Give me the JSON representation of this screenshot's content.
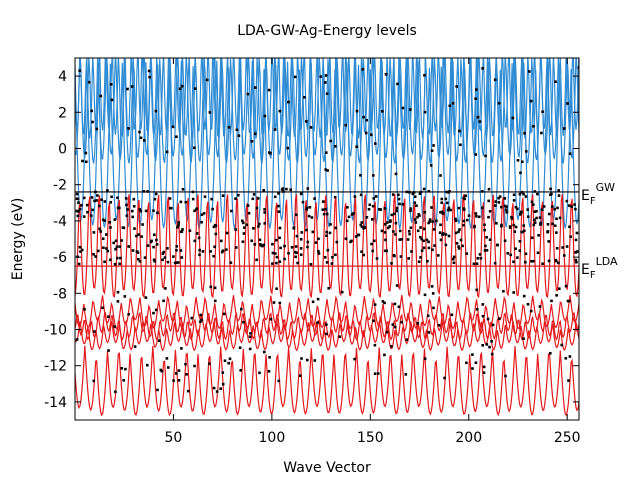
{
  "chart_data": {
    "type": "line",
    "title": "LDA-GW-Ag-Energy levels",
    "xlabel": "Wave Vector",
    "ylabel": "Energy (eV)",
    "xlim": [
      0,
      256
    ],
    "ylim": [
      -15,
      5
    ],
    "xticks": [
      50,
      100,
      150,
      200,
      250
    ],
    "yticks": [
      4,
      2,
      0,
      -2,
      -4,
      -6,
      -8,
      -10,
      -12,
      -14
    ],
    "grid": false,
    "legend": "none",
    "reference_lines": [
      {
        "id": "ef-gw",
        "y": -2.4,
        "label_main": "E",
        "label_sub": "F",
        "label_sup": "GW",
        "color": "#000000"
      },
      {
        "id": "ef-lda",
        "y": -6.5,
        "label_main": "E",
        "label_sub": "F",
        "label_sup": "LDA",
        "color": "#e41a1c"
      }
    ],
    "series": [
      {
        "style": "line",
        "color": "#2e8bd4",
        "bands": [
          {
            "base": 0.2,
            "amp": 4.4,
            "period": 12.0,
            "phase": 0.0
          },
          {
            "base": 2.6,
            "amp": 3.2,
            "period": 9.0,
            "phase": 1.3
          },
          {
            "base": 3.4,
            "amp": 2.6,
            "period": 6.5,
            "phase": 0.6
          }
        ]
      },
      {
        "style": "line",
        "color": "#e41a1c",
        "bands": [
          {
            "base": -12.8,
            "amp": 1.7,
            "period": 11.5,
            "phase": 0.4
          },
          {
            "base": -10.3,
            "amp": 0.6,
            "period": 8.0,
            "phase": 1.1
          },
          {
            "base": -9.7,
            "amp": 0.6,
            "period": 7.0,
            "phase": 2.0
          },
          {
            "base": -9.0,
            "amp": 0.7,
            "period": 9.5,
            "phase": 0.2
          },
          {
            "base": -5.0,
            "amp": 3.0,
            "period": 10.0,
            "phase": 1.7
          }
        ]
      },
      {
        "style": "points",
        "color": "#000000",
        "clusters": [
          {
            "center": -4.8,
            "spread": 1.6,
            "count": 420
          },
          {
            "center": -2.8,
            "spread": 0.6,
            "count": 140
          },
          {
            "center": 1.5,
            "spread": 3.0,
            "count": 110
          },
          {
            "center": -10.5,
            "spread": 3.0,
            "count": 150
          }
        ]
      }
    ]
  }
}
